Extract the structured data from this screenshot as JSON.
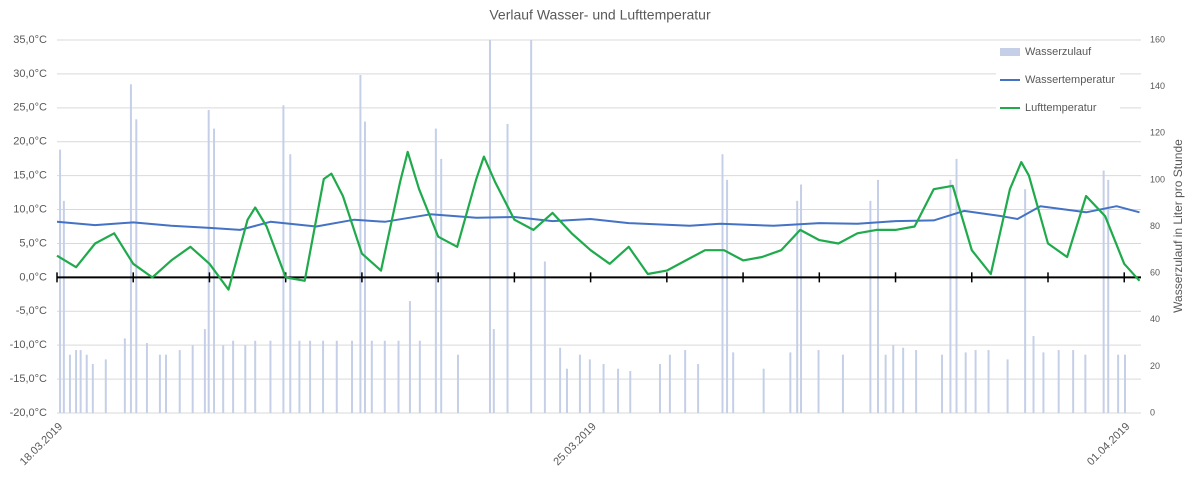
{
  "chart_data": {
    "type": "combo",
    "title": "Verlauf Wasser- und Lufttemperatur",
    "y2_label": "Wasserzulauf in Liter pro Stunde",
    "xlim": [
      0,
      14.22
    ],
    "xticks": [
      {
        "value": 0,
        "label": "18.03.2019"
      },
      {
        "value": 7,
        "label": "25.03.2019"
      },
      {
        "value": 14,
        "label": "01.04.2019"
      }
    ],
    "minor_xticks": [
      0,
      1,
      2,
      3,
      4,
      5,
      6,
      7,
      8,
      9,
      10,
      11,
      12,
      13,
      14
    ],
    "ylim": [
      -20,
      35
    ],
    "yticks": [
      {
        "value": -20,
        "label": "-20,0°C"
      },
      {
        "value": -15,
        "label": "-15,0°C"
      },
      {
        "value": -10,
        "label": "-10,0°C"
      },
      {
        "value": -5,
        "label": "-5,0°C"
      },
      {
        "value": 0,
        "label": "0,0°C"
      },
      {
        "value": 5,
        "label": "5,0°C"
      },
      {
        "value": 10,
        "label": "10,0°C"
      },
      {
        "value": 15,
        "label": "15,0°C"
      },
      {
        "value": 20,
        "label": "20,0°C"
      },
      {
        "value": 25,
        "label": "25,0°C"
      },
      {
        "value": 30,
        "label": "30,0°C"
      },
      {
        "value": 35,
        "label": "35,0°C"
      }
    ],
    "y2lim": [
      0,
      160
    ],
    "y2ticks": [
      0,
      20,
      40,
      60,
      80,
      100,
      120,
      140,
      160
    ],
    "grid": true,
    "legend": "top-right",
    "series": [
      {
        "name": "Wasserzulauf",
        "type": "bar",
        "axis": "y2",
        "color": "#c5d0e8",
        "x": [
          0.04,
          0.09,
          0.17,
          0.25,
          0.31,
          0.39,
          0.47,
          0.64,
          0.89,
          0.97,
          1.04,
          1.18,
          1.35,
          1.43,
          1.61,
          1.78,
          1.94,
          1.99,
          2.06,
          2.18,
          2.31,
          2.47,
          2.6,
          2.8,
          2.97,
          3.06,
          3.18,
          3.32,
          3.49,
          3.67,
          3.87,
          3.98,
          4.04,
          4.13,
          4.3,
          4.48,
          4.63,
          4.76,
          4.97,
          5.04,
          5.26,
          5.68,
          5.73,
          5.91,
          6.22,
          6.4,
          6.6,
          6.69,
          6.86,
          6.99,
          7.17,
          7.36,
          7.52,
          7.91,
          8.04,
          8.24,
          8.41,
          8.73,
          8.79,
          8.87,
          9.27,
          9.62,
          9.71,
          9.76,
          9.99,
          10.31,
          10.67,
          10.77,
          10.87,
          10.97,
          11.1,
          11.27,
          11.61,
          11.72,
          11.8,
          11.92,
          12.05,
          12.22,
          12.47,
          12.7,
          12.81,
          12.94,
          13.14,
          13.33,
          13.49,
          13.73,
          13.79,
          13.92,
          14.01
        ],
        "values": [
          113,
          91,
          25,
          27,
          27,
          25,
          21,
          23,
          32,
          141,
          126,
          30,
          25,
          25,
          27,
          29,
          36,
          130,
          122,
          29,
          31,
          29,
          31,
          31,
          132,
          111,
          31,
          31,
          31,
          31,
          31,
          145,
          125,
          31,
          31,
          31,
          48,
          31,
          122,
          109,
          25,
          160,
          36,
          124,
          160,
          65,
          28,
          19,
          25,
          23,
          21,
          19,
          18,
          21,
          25,
          27,
          21,
          111,
          100,
          26,
          19,
          26,
          91,
          98,
          27,
          25,
          91,
          100,
          25,
          29,
          28,
          27,
          25,
          100,
          109,
          26,
          27,
          27,
          23,
          96,
          33,
          26,
          27,
          27,
          25,
          104,
          100,
          25,
          25
        ]
      },
      {
        "name": "Wassertemperatur",
        "type": "line",
        "color": "#4472c4",
        "x": [
          0,
          0.5,
          1,
          1.5,
          2,
          2.4,
          2.8,
          3.4,
          3.9,
          4.3,
          4.9,
          5.5,
          6,
          6.5,
          7,
          7.5,
          8.3,
          8.7,
          9.4,
          10,
          10.5,
          11,
          11.5,
          11.9,
          12.4,
          12.6,
          12.9,
          13.5,
          13.9,
          14.2
        ],
        "values": [
          8.2,
          7.7,
          8.1,
          7.6,
          7.3,
          7.0,
          8.2,
          7.5,
          8.5,
          8.2,
          9.3,
          8.8,
          8.9,
          8.3,
          8.6,
          8.0,
          7.6,
          7.9,
          7.6,
          8.0,
          7.9,
          8.3,
          8.4,
          9.8,
          9.0,
          8.6,
          10.5,
          9.6,
          10.5,
          9.6
        ]
      },
      {
        "name": "Lufttemperatur",
        "type": "line",
        "color": "#1faa4c",
        "x": [
          0,
          0.25,
          0.5,
          0.75,
          1,
          1.25,
          1.5,
          1.75,
          2,
          2.25,
          2.5,
          2.6,
          2.75,
          3,
          3.25,
          3.5,
          3.6,
          3.75,
          4,
          4.25,
          4.5,
          4.6,
          4.75,
          5,
          5.25,
          5.5,
          5.6,
          5.75,
          6,
          6.25,
          6.5,
          6.75,
          7,
          7.25,
          7.5,
          7.75,
          8,
          8.25,
          8.5,
          8.75,
          9,
          9.25,
          9.5,
          9.75,
          10,
          10.25,
          10.5,
          10.75,
          11,
          11.25,
          11.5,
          11.75,
          12,
          12.25,
          12.5,
          12.65,
          12.75,
          13,
          13.25,
          13.5,
          13.75,
          14,
          14.2
        ],
        "values": [
          3.2,
          1.5,
          5.0,
          6.5,
          2.0,
          0,
          2.5,
          4.5,
          2.0,
          -1.8,
          8.5,
          10.3,
          7.5,
          0,
          -0.5,
          14.5,
          15.3,
          12.0,
          3.5,
          1.0,
          14.0,
          18.5,
          13.0,
          6.0,
          4.5,
          14.5,
          17.8,
          14.0,
          8.5,
          7.0,
          9.5,
          6.5,
          4.0,
          2.0,
          4.5,
          0.5,
          1.0,
          2.5,
          4.0,
          4.0,
          2.5,
          3.0,
          4.0,
          7.0,
          5.5,
          5.0,
          6.5,
          7.0,
          7.0,
          7.5,
          13.0,
          13.5,
          4.0,
          0.5,
          13.0,
          17.0,
          15.0,
          5.0,
          3.0,
          12.0,
          9.0,
          2.0,
          -0.5
        ]
      }
    ]
  }
}
